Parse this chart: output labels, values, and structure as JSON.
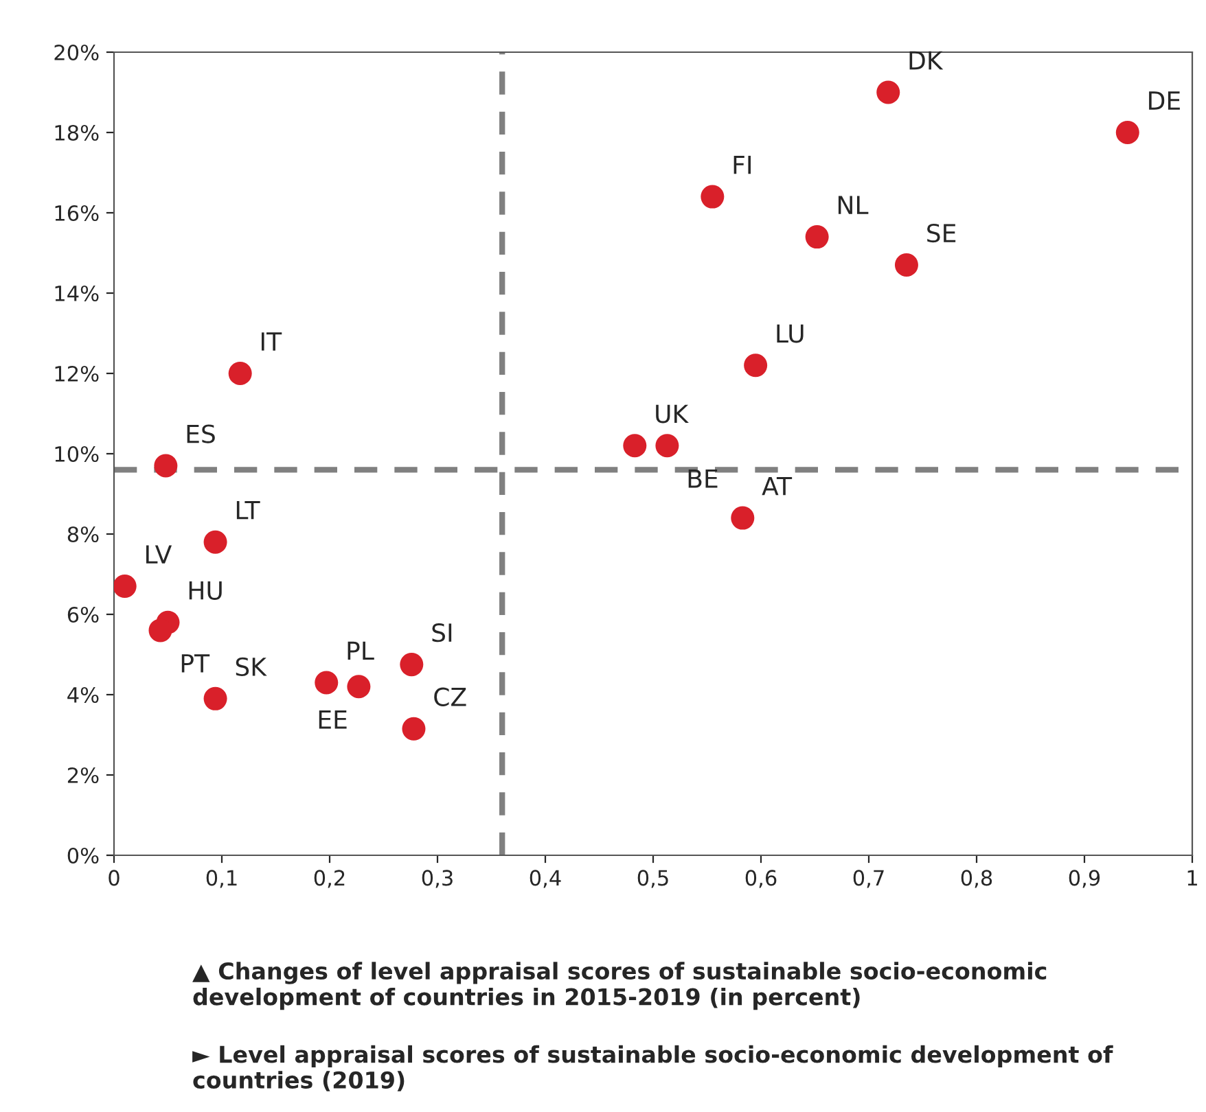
{
  "chart_data": {
    "type": "scatter",
    "x": [
      0.94,
      0.718,
      0.555,
      0.652,
      0.735,
      0.595,
      0.483,
      0.513,
      0.583,
      0.117,
      0.048,
      0.094,
      0.01,
      0.05,
      0.043,
      0.094,
      0.197,
      0.227,
      0.276,
      0.278
    ],
    "series": [
      {
        "color": "#d9202a",
        "values": [
          18.0,
          19.0,
          16.4,
          15.4,
          14.7,
          12.2,
          10.2,
          10.2,
          8.4,
          12.0,
          9.7,
          7.8,
          6.7,
          5.8,
          5.6,
          3.9,
          4.3,
          4.2,
          4.75,
          3.15
        ]
      }
    ],
    "marker": "circle",
    "grid": false,
    "legend": false,
    "xlim": [
      0,
      1
    ],
    "ylim": [
      0,
      20
    ],
    "xticks": [
      0,
      {
        "value": 0.1,
        "label": "0,1"
      },
      {
        "value": 0.2,
        "label": "0,2"
      },
      {
        "value": 0.3,
        "label": "0,3"
      },
      {
        "value": 0.4,
        "label": "0,4"
      },
      {
        "value": 0.5,
        "label": "0,5"
      },
      {
        "value": 0.6,
        "label": "0,6"
      },
      {
        "value": 0.7,
        "label": "0,7"
      },
      {
        "value": 0.8,
        "label": "0,8"
      },
      {
        "value": 0.9,
        "label": "0,9"
      },
      1
    ],
    "yticks": [
      {
        "value": 0,
        "label": "0%"
      },
      {
        "value": 2,
        "label": "2%"
      },
      {
        "value": 4,
        "label": "4%"
      },
      {
        "value": 6,
        "label": "6%"
      },
      {
        "value": 8,
        "label": "8%"
      },
      {
        "value": 10,
        "label": "10%"
      },
      {
        "value": 12,
        "label": "12%"
      },
      {
        "value": 14,
        "label": "14%"
      },
      {
        "value": 16,
        "label": "16%"
      },
      {
        "value": 18,
        "label": "18%"
      },
      {
        "value": 20,
        "label": "20%"
      }
    ],
    "ref_lines": [
      {
        "axis": "x",
        "value": 0.36,
        "color": "#808080",
        "line_style": "dashed"
      },
      {
        "axis": "y",
        "value": 9.6,
        "color": "#808080",
        "line_style": "dashed"
      }
    ],
    "annotations": [
      {
        "text": "DE",
        "x": 0.94,
        "y": 18.0
      },
      {
        "text": "DK",
        "x": 0.718,
        "y": 19.0
      },
      {
        "text": "FI",
        "x": 0.555,
        "y": 16.4
      },
      {
        "text": "NL",
        "x": 0.652,
        "y": 15.4
      },
      {
        "text": "SE",
        "x": 0.735,
        "y": 14.7
      },
      {
        "text": "LU",
        "x": 0.595,
        "y": 12.2
      },
      {
        "text": "UK",
        "x": 0.483,
        "y": 10.2
      },
      {
        "text": "BE",
        "x": 0.513,
        "y": 10.2
      },
      {
        "text": "AT",
        "x": 0.583,
        "y": 8.4
      },
      {
        "text": "IT",
        "x": 0.117,
        "y": 12.0
      },
      {
        "text": "ES",
        "x": 0.048,
        "y": 9.7
      },
      {
        "text": "LT",
        "x": 0.094,
        "y": 7.8
      },
      {
        "text": "LV",
        "x": 0.01,
        "y": 6.7
      },
      {
        "text": "HU",
        "x": 0.05,
        "y": 5.8
      },
      {
        "text": "PT",
        "x": 0.043,
        "y": 5.6
      },
      {
        "text": "SK",
        "x": 0.094,
        "y": 3.9
      },
      {
        "text": "PL",
        "x": 0.197,
        "y": 4.3
      },
      {
        "text": "EE",
        "x": 0.227,
        "y": 4.2
      },
      {
        "text": "SI",
        "x": 0.276,
        "y": 4.75
      },
      {
        "text": "CZ",
        "x": 0.278,
        "y": 3.15
      },
      "▲ Changes of level appraisal scores of sustainable socio-economic development of countries in 2015-2019 (in percent)",
      "► Level appraisal scores of sustainable socio-economic development of countries (2019)"
    ]
  }
}
